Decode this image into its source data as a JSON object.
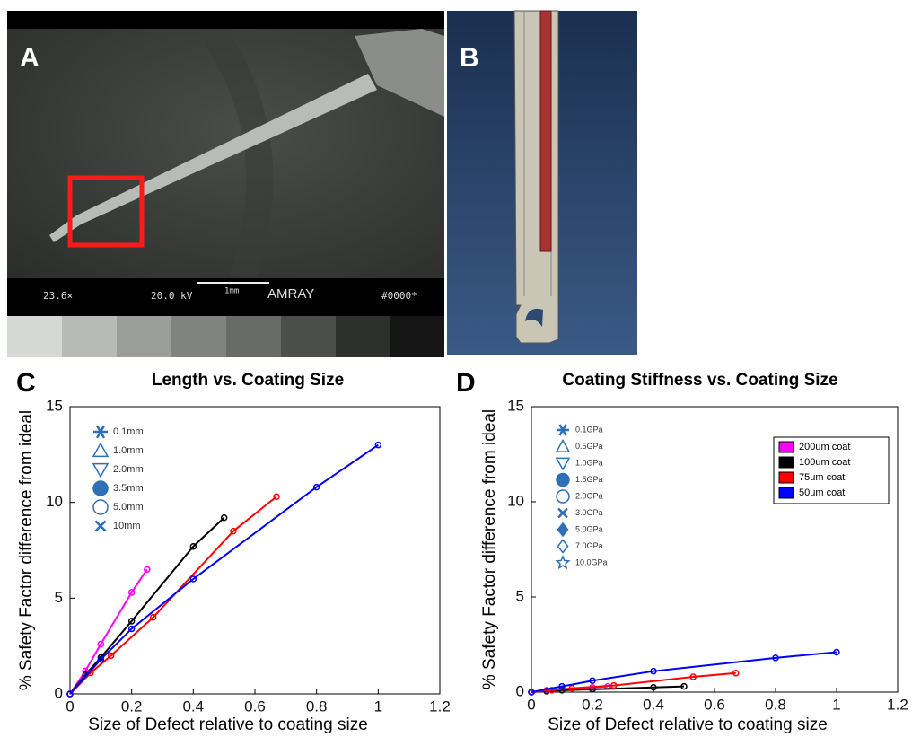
{
  "panel_labels": [
    "A",
    "B",
    "C",
    "D"
  ],
  "sem_image": {
    "magnification": "23.6×",
    "voltage": "20.0 kV",
    "scale": "1mm",
    "brand": "AMRAY",
    "id": "#0000*"
  },
  "chart_data": [
    {
      "type": "line",
      "title": "Length vs. Coating Size",
      "xlabel": "Size of Defect relative to coating size",
      "ylabel": "% Safety Factor difference from ideal",
      "xlim": [
        0,
        1.2
      ],
      "xticks": [
        0,
        0.2,
        0.4,
        0.6,
        0.8,
        1,
        1.2
      ],
      "ylim": [
        0,
        15
      ],
      "yticks": [
        0,
        5,
        10,
        15
      ],
      "series": [
        {
          "color": "#ff00ff",
          "x": [
            0,
            0.05,
            0.1,
            0.2,
            0.25
          ],
          "values": [
            0,
            1.2,
            2.6,
            5.3,
            6.5
          ]
        },
        {
          "color": "#000000",
          "x": [
            0,
            0.05,
            0.1,
            0.2,
            0.4,
            0.5
          ],
          "values": [
            0,
            1,
            1.9,
            3.8,
            7.7,
            9.2
          ]
        },
        {
          "color": "#ff0000",
          "x": [
            0,
            0.067,
            0.133,
            0.27,
            0.53,
            0.67
          ],
          "values": [
            0,
            1.1,
            2,
            4,
            8.5,
            10.3
          ]
        },
        {
          "color": "#0000ff",
          "x": [
            0,
            0.1,
            0.2,
            0.4,
            0.8,
            1
          ],
          "values": [
            0,
            1.8,
            3.4,
            6,
            10.8,
            13
          ]
        }
      ],
      "marker_color": "#2e6fb5",
      "marker_legend": [
        {
          "marker": "asterisk",
          "label": "0.1mm"
        },
        {
          "marker": "triangle",
          "label": "1.0mm"
        },
        {
          "marker": "triangle-down",
          "label": "2.0mm"
        },
        {
          "marker": "circle-filled",
          "label": "3.5mm"
        },
        {
          "marker": "circle",
          "label": "5.0mm"
        },
        {
          "marker": "x",
          "label": "10mm"
        }
      ]
    },
    {
      "type": "line",
      "title": "Coating Stiffness vs. Coating Size",
      "xlabel": "Size of Defect relative to coating size",
      "ylabel": "% Safety Factor difference from ideal",
      "xlim": [
        0,
        1.2
      ],
      "xticks": [
        0,
        0.2,
        0.4,
        0.6,
        0.8,
        1,
        1.2
      ],
      "ylim": [
        0,
        15
      ],
      "yticks": [
        0,
        5,
        10,
        15
      ],
      "series": [
        {
          "name": "200um coat",
          "color": "#ff00ff",
          "x": [
            0,
            0.05,
            0.1,
            0.2,
            0.25
          ],
          "values": [
            0,
            0.1,
            0.15,
            0.25,
            0.3
          ]
        },
        {
          "name": "100um coat",
          "color": "#000000",
          "x": [
            0,
            0.05,
            0.1,
            0.2,
            0.4,
            0.5
          ],
          "values": [
            0,
            0.05,
            0.1,
            0.15,
            0.25,
            0.3
          ]
        },
        {
          "name": "75um coat",
          "color": "#ff0000",
          "x": [
            0,
            0.067,
            0.133,
            0.27,
            0.53,
            0.67
          ],
          "values": [
            0,
            0.1,
            0.2,
            0.35,
            0.8,
            1
          ]
        },
        {
          "name": "50um coat",
          "color": "#0000ff",
          "x": [
            0,
            0.1,
            0.2,
            0.4,
            0.8,
            1
          ],
          "values": [
            0,
            0.3,
            0.6,
            1.1,
            1.8,
            2.1
          ]
        }
      ],
      "marker_color": "#2e6fb5",
      "marker_legend": [
        {
          "marker": "asterisk",
          "label": "0.1GPa"
        },
        {
          "marker": "triangle",
          "label": "0.5GPa"
        },
        {
          "marker": "triangle-down",
          "label": "1.0GPa"
        },
        {
          "marker": "circle-filled",
          "label": "1.5GPa"
        },
        {
          "marker": "circle",
          "label": "2.0GPa"
        },
        {
          "marker": "x",
          "label": "3.0GPa"
        },
        {
          "marker": "diamond-filled",
          "label": "5.0GPa"
        },
        {
          "marker": "diamond",
          "label": "7.0GPa"
        },
        {
          "marker": "star",
          "label": "10.0GPa"
        }
      ]
    }
  ]
}
